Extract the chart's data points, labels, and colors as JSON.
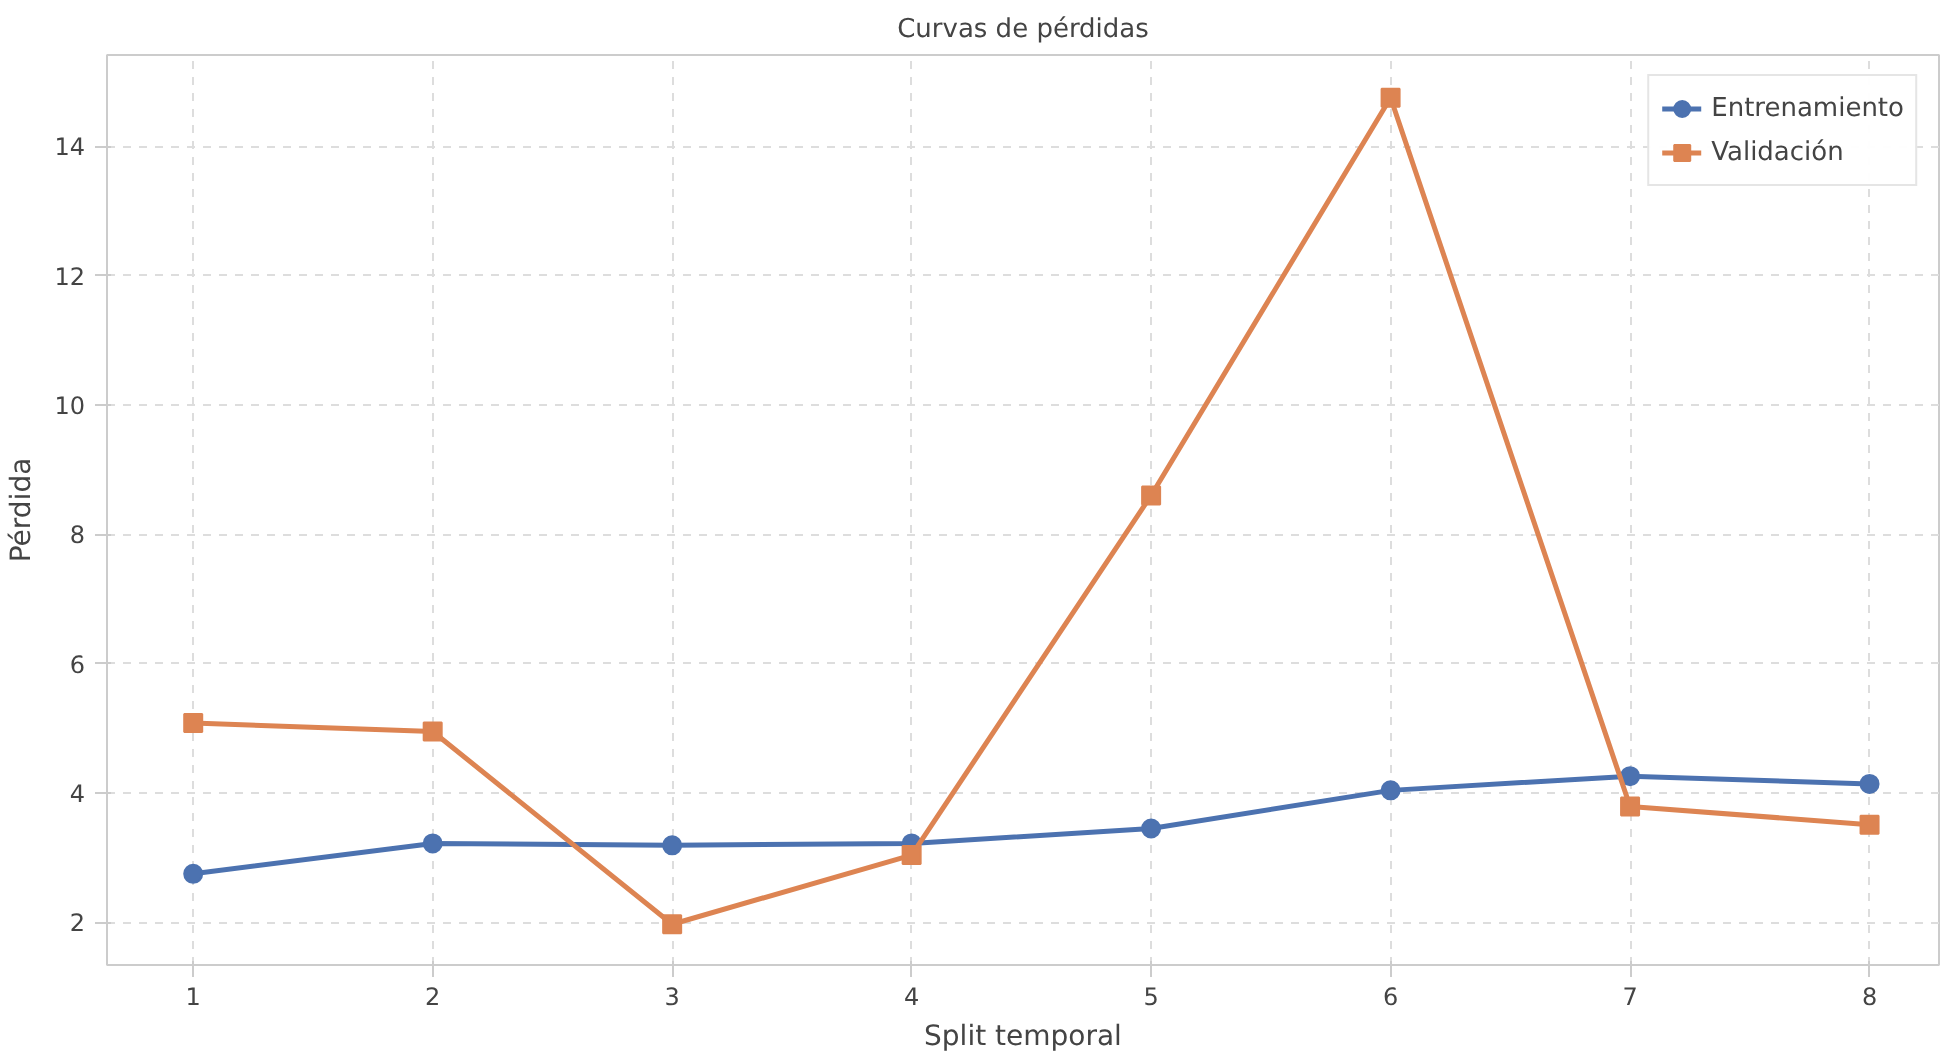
{
  "chart_data": {
    "type": "line",
    "title": "Curvas de pérdidas",
    "xlabel": "Split temporal",
    "ylabel": "Pérdida",
    "x": [
      1,
      2,
      3,
      4,
      5,
      6,
      7,
      8
    ],
    "series": [
      {
        "name": "Entrenamiento",
        "color": "#4c72b0",
        "marker": "circle",
        "values": [
          2.75,
          3.22,
          3.19,
          3.22,
          3.45,
          4.04,
          4.26,
          4.14
        ]
      },
      {
        "name": "Validación",
        "color": "#dd8452",
        "marker": "square",
        "values": [
          5.08,
          4.95,
          1.97,
          3.04,
          8.6,
          14.75,
          3.79,
          3.51
        ]
      }
    ],
    "xlim": [
      0.64,
      8.29
    ],
    "xticks": [
      1,
      2,
      3,
      4,
      5,
      6,
      7,
      8
    ],
    "ylim": [
      1.34,
      15.41
    ],
    "yticks": [
      2,
      4,
      6,
      8,
      10,
      12,
      14
    ],
    "grid": true,
    "legend": "top right",
    "line_style": "solid"
  }
}
